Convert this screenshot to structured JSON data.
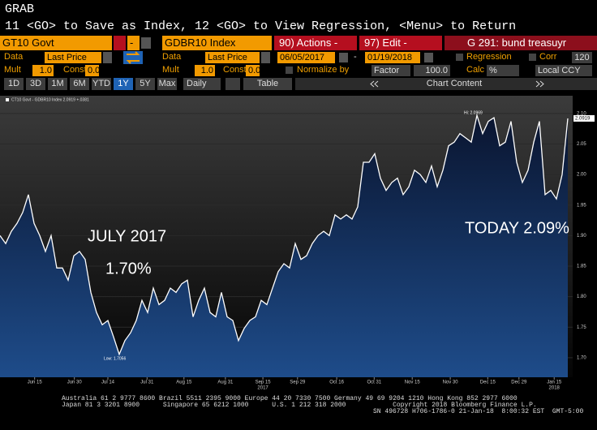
{
  "header": {
    "title": "GRAB",
    "command": "11 <GO> to Save as Index, 12 <GO> to View Regression, <Menu> to Return"
  },
  "toolbar": {
    "security1": "GT10 Govt",
    "minus": "-",
    "security2": "GDBR10 Index",
    "actions": "90) Actions -",
    "edit": "97) Edit -",
    "page": "G 291: bund treasuyr"
  },
  "row2": {
    "data1": "Data",
    "field1": "Last Price",
    "data2": "Data",
    "field2": "Last Price",
    "start": "06/05/2017",
    "dash": "-",
    "end": "01/19/2018",
    "regression": "Regression",
    "corr": "Corr",
    "corr_value": "120"
  },
  "row3": {
    "mult1": "Mult",
    "mult1_value": "1.0",
    "const1": "Const",
    "const1_value": "0.0",
    "mult2": "Mult",
    "mult2_value": "1.0",
    "const2": "Const",
    "const2_value": "0.0",
    "normalize": "Normalize by",
    "factor": "Factor",
    "factor_value": "100.0",
    "calc": "Calc",
    "calc_value": "%",
    "ccy": "Local CCY"
  },
  "ranges": [
    "1D",
    "3D",
    "1M",
    "6M",
    "YTD",
    "1Y",
    "5Y",
    "Max"
  ],
  "selected_range": 5,
  "frequency": "Daily",
  "table": "Table",
  "chart_content": "Chart Content",
  "chart_data": {
    "type": "line",
    "legend": "CT10 Govt - GDBR10 Index 2.0919 +.0381",
    "last_value_label": "2.0919",
    "annotations": [
      "JULY 2017",
      "1.70%",
      "TODAY 2.09%",
      "Hi: 2.0969",
      "Low: 1.7056"
    ],
    "series": [
      {
        "name": "CT10 Govt - GDBR10 Index",
        "color": "#ffffff",
        "values": [
          1.9,
          1.887,
          1.907,
          1.92,
          1.938,
          1.967,
          1.92,
          1.9,
          1.874,
          1.9,
          1.847,
          1.847,
          1.827,
          1.867,
          1.874,
          1.861,
          1.807,
          1.774,
          1.754,
          1.761,
          1.734,
          1.7056,
          1.728,
          1.741,
          1.761,
          1.794,
          1.774,
          1.814,
          1.787,
          1.794,
          1.814,
          1.807,
          1.821,
          1.827,
          1.767,
          1.794,
          1.814,
          1.774,
          1.767,
          1.807,
          1.767,
          1.761,
          1.728,
          1.748,
          1.761,
          1.767,
          1.794,
          1.787,
          1.814,
          1.841,
          1.854,
          1.847,
          1.887,
          1.861,
          1.867,
          1.887,
          1.9,
          1.907,
          1.9,
          1.934,
          1.927,
          1.934,
          1.927,
          1.947,
          2.02,
          2.02,
          2.034,
          1.994,
          1.974,
          1.987,
          1.994,
          1.967,
          1.98,
          2.007,
          2.0,
          1.987,
          2.014,
          1.98,
          2.007,
          2.047,
          2.053,
          2.067,
          2.06,
          2.053,
          2.0969,
          2.067,
          2.087,
          2.093,
          2.047,
          2.053,
          2.087,
          2.02,
          1.987,
          2.007,
          2.053,
          2.087,
          1.967,
          1.974,
          1.96,
          2.0,
          2.0919
        ]
      }
    ],
    "xlim": [
      0,
      100
    ],
    "xticks": [
      {
        "value": 6.1,
        "label": "Jun 15"
      },
      {
        "value": 13.1,
        "label": "Jun 30"
      },
      {
        "value": 19,
        "label": "Jul 14"
      },
      {
        "value": 25.9,
        "label": "Jul 31"
      },
      {
        "value": 32.4,
        "label": "Aug 15"
      },
      {
        "value": 39.7,
        "label": "Aug 31"
      },
      {
        "value": 46.3,
        "label": "Sep 15"
      },
      {
        "value": 52.4,
        "label": "Sep 29"
      },
      {
        "value": 59.3,
        "label": "Oct 16"
      },
      {
        "value": 65.9,
        "label": "Oct 31"
      },
      {
        "value": 72.6,
        "label": "Nov 15"
      },
      {
        "value": 79.3,
        "label": "Nov 30"
      },
      {
        "value": 85.9,
        "label": "Dec 15"
      },
      {
        "value": 91.4,
        "label": "Dec 29"
      },
      {
        "value": 97.6,
        "label": "Jan 15"
      }
    ],
    "xtick_years": [
      {
        "value": 46.3,
        "label": "2017"
      },
      {
        "value": 97.6,
        "label": "2018"
      }
    ],
    "ylim": [
      1.668,
      2.129
    ],
    "yticks": [
      {
        "value": 1.7,
        "label": "1.70"
      },
      1.75,
      {
        "value": 1.8,
        "label": "1.80"
      },
      1.85,
      {
        "value": 1.9,
        "label": "1.90"
      },
      1.95,
      {
        "value": 2.0,
        "label": "2.00"
      },
      2.05,
      {
        "value": 2.1,
        "label": "2.10"
      }
    ],
    "grid": true
  },
  "footer": [
    "Australia 61 2 9777 8600 Brazil 5511 2395 9000 Europe 44 20 7330 7500 Germany 49 69 9204 1210 Hong Kong 852 2977 6000",
    "Japan 81 3 3201 8900      Singapore 65 6212 1000      U.S. 1 212 318 2000            Copyright 2018 Bloomberg Finance L.P.",
    "SN 496728 H706-1786-0 21-Jan-18  8:00:32 EST  GMT-5:00"
  ]
}
